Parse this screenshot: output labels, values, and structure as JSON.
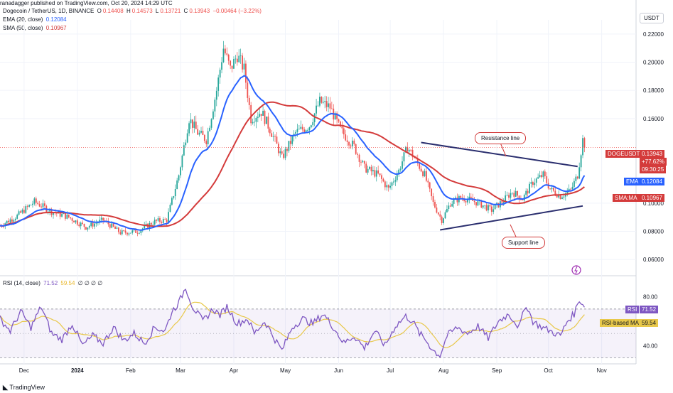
{
  "header": {
    "published": "ranadagger published on TradingView.com, Oct 20, 2024 14:29 UTC",
    "symbol_line": "Dogecoin / TetherUS, 1D, BINANCE",
    "ohlc": {
      "o_label": "O",
      "o": "0.14408",
      "h_label": "H",
      "h": "0.14573",
      "l_label": "L",
      "l": "0.13721",
      "c_label": "C",
      "c": "0.13943",
      "change": "−0.00464 (−3.22%)"
    },
    "ema_line": {
      "label": "EMA (20, close)",
      "value": "0.12084"
    },
    "sma_line": {
      "label": "SMA (50, close)",
      "value": "0.10967"
    },
    "rsi_line": {
      "label": "RSI (14, close)",
      "v1": "71.52",
      "v2": "59.54",
      "rest": "∅ ∅ ∅ ∅"
    }
  },
  "currency": "USDT",
  "badges": {
    "symbol": "DOGEUSDT",
    "price": "0.13943",
    "change": "+77.62%",
    "countdown": "09:30:25",
    "ema": "EMA",
    "ema_value": "0.12084",
    "sma": "SMA:MA",
    "sma_value": "0.10967",
    "rsi": "RSI",
    "rsi_value": "71.52",
    "rsi_ma": "RSI-based MA",
    "rsi_ma_value": "59.54"
  },
  "annotations": {
    "resistance": "Resistance line",
    "support": "Support line"
  },
  "footer": {
    "brand": "TradingView"
  },
  "colors": {
    "up": "#26a69a",
    "down": "#ef5350",
    "ema": "#2962ff",
    "sma": "#d43b3b",
    "rsi": "#7e57c2",
    "rsi_ma": "#e8c84a",
    "trend": "#2a2e6e"
  },
  "chart_data": {
    "type": "candlestick",
    "title": "Dogecoin / TetherUS, 1D, BINANCE",
    "y_ticks": [
      "0.22000",
      "0.20000",
      "0.18000",
      "0.16000",
      "0.10000",
      "0.08000",
      "0.06000"
    ],
    "y_tick_values": [
      0.22,
      0.2,
      0.18,
      0.16,
      0.1,
      0.08,
      0.06
    ],
    "ylim": [
      0.05,
      0.23
    ],
    "x_labels": [
      "Dec",
      "2024",
      "Feb",
      "Mar",
      "Apr",
      "May",
      "Jun",
      "Jul",
      "Aug",
      "Sep",
      "Oct",
      "Nov"
    ],
    "x_label_days": [
      14,
      45,
      76,
      105,
      136,
      166,
      197,
      227,
      258,
      289,
      319,
      350
    ],
    "x_range_days": [
      0,
      370
    ],
    "price_anchors": [
      [
        0,
        0.084
      ],
      [
        10,
        0.091
      ],
      [
        20,
        0.101
      ],
      [
        30,
        0.094
      ],
      [
        40,
        0.09
      ],
      [
        50,
        0.083
      ],
      [
        60,
        0.088
      ],
      [
        70,
        0.079
      ],
      [
        80,
        0.08
      ],
      [
        90,
        0.087
      ],
      [
        97,
        0.088
      ],
      [
        104,
        0.12
      ],
      [
        110,
        0.16
      ],
      [
        115,
        0.15
      ],
      [
        120,
        0.145
      ],
      [
        126,
        0.18
      ],
      [
        130,
        0.21
      ],
      [
        134,
        0.195
      ],
      [
        138,
        0.205
      ],
      [
        142,
        0.195
      ],
      [
        146,
        0.16
      ],
      [
        152,
        0.165
      ],
      [
        158,
        0.15
      ],
      [
        164,
        0.132
      ],
      [
        172,
        0.15
      ],
      [
        180,
        0.155
      ],
      [
        186,
        0.172
      ],
      [
        192,
        0.168
      ],
      [
        198,
        0.152
      ],
      [
        206,
        0.14
      ],
      [
        212,
        0.125
      ],
      [
        220,
        0.12
      ],
      [
        226,
        0.11
      ],
      [
        232,
        0.123
      ],
      [
        237,
        0.14
      ],
      [
        242,
        0.13
      ],
      [
        247,
        0.12
      ],
      [
        252,
        0.1
      ],
      [
        257,
        0.088
      ],
      [
        262,
        0.1
      ],
      [
        268,
        0.104
      ],
      [
        274,
        0.102
      ],
      [
        280,
        0.099
      ],
      [
        286,
        0.095
      ],
      [
        292,
        0.101
      ],
      [
        298,
        0.108
      ],
      [
        304,
        0.103
      ],
      [
        310,
        0.115
      ],
      [
        316,
        0.12
      ],
      [
        320,
        0.11
      ],
      [
        326,
        0.105
      ],
      [
        332,
        0.109
      ],
      [
        336,
        0.12
      ],
      [
        339,
        0.145
      ],
      [
        340,
        0.13943
      ]
    ],
    "ema": {
      "name": "EMA (20, close)",
      "last": 0.12084
    },
    "sma": {
      "name": "SMA (50, close)",
      "last": 0.10967
    },
    "trendlines": [
      {
        "name": "Resistance line",
        "from": [
          245,
          0.143
        ],
        "to": [
          336,
          0.126
        ]
      },
      {
        "name": "Support line",
        "from": [
          256,
          0.081
        ],
        "to": [
          339,
          0.098
        ]
      }
    ],
    "rsi": {
      "name": "RSI (14, close)",
      "last": 71.52,
      "ma_last": 59.54,
      "ylim": [
        25,
        95
      ],
      "bands": [
        70,
        30
      ],
      "y_ticks": [
        "80.00",
        "40.00"
      ],
      "y_tick_values": [
        80,
        40
      ],
      "anchors": [
        [
          0,
          62
        ],
        [
          6,
          52
        ],
        [
          12,
          68
        ],
        [
          18,
          55
        ],
        [
          24,
          72
        ],
        [
          30,
          50
        ],
        [
          36,
          45
        ],
        [
          42,
          58
        ],
        [
          48,
          40
        ],
        [
          54,
          48
        ],
        [
          60,
          42
        ],
        [
          66,
          55
        ],
        [
          72,
          44
        ],
        [
          78,
          50
        ],
        [
          84,
          42
        ],
        [
          90,
          55
        ],
        [
          96,
          52
        ],
        [
          100,
          68
        ],
        [
          104,
          75
        ],
        [
          108,
          88
        ],
        [
          112,
          72
        ],
        [
          118,
          60
        ],
        [
          124,
          70
        ],
        [
          128,
          65
        ],
        [
          132,
          72
        ],
        [
          138,
          58
        ],
        [
          144,
          62
        ],
        [
          148,
          50
        ],
        [
          154,
          60
        ],
        [
          160,
          45
        ],
        [
          164,
          36
        ],
        [
          170,
          55
        ],
        [
          176,
          62
        ],
        [
          182,
          58
        ],
        [
          188,
          66
        ],
        [
          194,
          55
        ],
        [
          200,
          42
        ],
        [
          206,
          48
        ],
        [
          212,
          38
        ],
        [
          218,
          52
        ],
        [
          224,
          40
        ],
        [
          230,
          56
        ],
        [
          236,
          64
        ],
        [
          240,
          60
        ],
        [
          244,
          50
        ],
        [
          248,
          44
        ],
        [
          252,
          36
        ],
        [
          256,
          32
        ],
        [
          260,
          48
        ],
        [
          266,
          55
        ],
        [
          272,
          50
        ],
        [
          278,
          56
        ],
        [
          284,
          46
        ],
        [
          290,
          60
        ],
        [
          296,
          66
        ],
        [
          302,
          55
        ],
        [
          306,
          74
        ],
        [
          310,
          60
        ],
        [
          314,
          56
        ],
        [
          320,
          52
        ],
        [
          326,
          48
        ],
        [
          330,
          60
        ],
        [
          334,
          66
        ],
        [
          337,
          78
        ],
        [
          340,
          71.52
        ]
      ]
    }
  }
}
